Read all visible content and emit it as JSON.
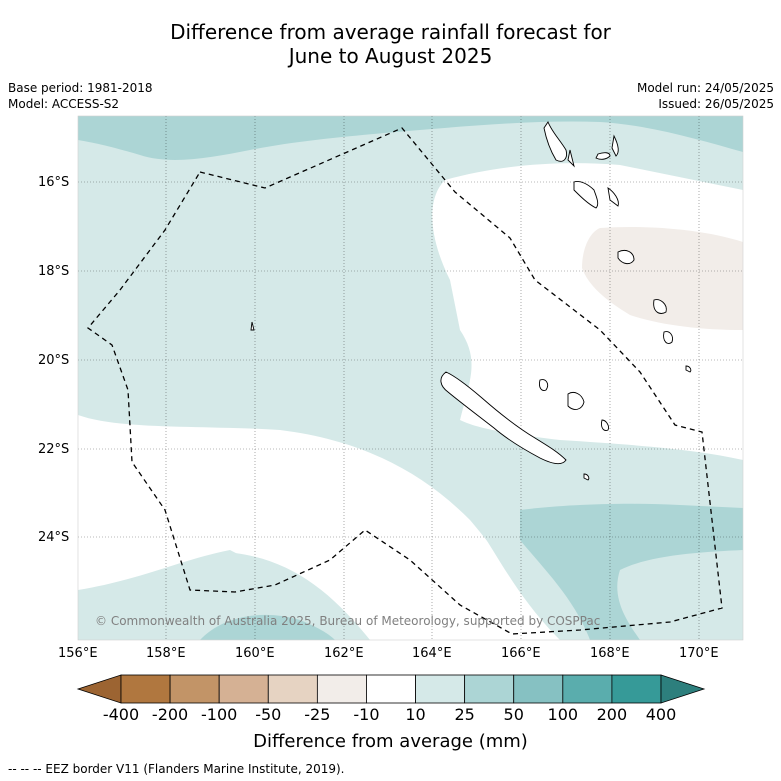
{
  "title_line1": "Difference from average rainfall forecast for",
  "title_line2": "June to August 2025",
  "meta_left": [
    "Base period: 1981-2018",
    "Model: ACCESS-S2"
  ],
  "meta_right": [
    "Model run: 24/05/2025",
    "Issued: 26/05/2025"
  ],
  "lat_labels": [
    "16°S",
    "18°S",
    "20°S",
    "22°S",
    "24°S"
  ],
  "lon_labels": [
    "156°E",
    "158°E",
    "160°E",
    "162°E",
    "164°E",
    "166°E",
    "168°E",
    "170°E"
  ],
  "copyright": "© Commonwealth of Australia 2025, Bureau of Meteorology, supported by COSPPac",
  "colorbar": {
    "title": "Difference from average (mm)",
    "ticks": [
      "-400",
      "-200",
      "-100",
      "-50",
      "-25",
      "-10",
      "10",
      "25",
      "50",
      "100",
      "200",
      "400"
    ],
    "colors": [
      "#9c6432",
      "#b0773f",
      "#c29467",
      "#d5b194",
      "#e6d3c2",
      "#f2ede9",
      "#ffffff",
      "#d5e9e8",
      "#acd5d5",
      "#86c1c2",
      "#5aadad",
      "#369a98",
      "#2d7f7d"
    ]
  },
  "footnote": "--  --  -- EEZ border V11 (Flanders Marine Institute, 2019).",
  "colors": {
    "light_teal": "#d5e9e8",
    "mid_teal": "#acd5d5",
    "beige": "#f2ede9"
  }
}
